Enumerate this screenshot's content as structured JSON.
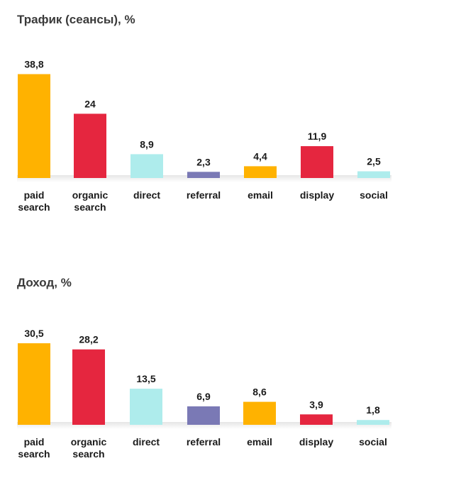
{
  "chart_data": [
    {
      "type": "bar",
      "title": "Трафик (сеансы), %",
      "categories": [
        "paid search",
        "organic search",
        "direct",
        "referral",
        "email",
        "display",
        "social"
      ],
      "values": [
        38.8,
        24,
        8.9,
        2.3,
        4.4,
        11.9,
        2.5
      ],
      "labels": [
        "38,8",
        "24",
        "8,9",
        "2,3",
        "4,4",
        "11,9",
        "2,5"
      ],
      "colors": [
        "#FFB200",
        "#E5263F",
        "#AEECEC",
        "#7A79B5",
        "#FFB200",
        "#E5263F",
        "#AEECEC"
      ],
      "xlabel": "",
      "ylabel": "",
      "ylim": [
        0,
        40
      ]
    },
    {
      "type": "bar",
      "title": "Доход, %",
      "categories": [
        "paid search",
        "organic search",
        "direct",
        "referral",
        "email",
        "display",
        "social"
      ],
      "values": [
        30.5,
        28.2,
        13.5,
        6.9,
        8.6,
        3.9,
        1.8
      ],
      "labels": [
        "30,5",
        "28,2",
        "13,5",
        "6,9",
        "8,6",
        "3,9",
        "1,8"
      ],
      "colors": [
        "#FFB200",
        "#E5263F",
        "#AEECEC",
        "#7A79B5",
        "#FFB200",
        "#E5263F",
        "#AEECEC"
      ],
      "xlabel": "",
      "ylabel": "",
      "ylim": [
        0,
        30.5
      ]
    }
  ]
}
